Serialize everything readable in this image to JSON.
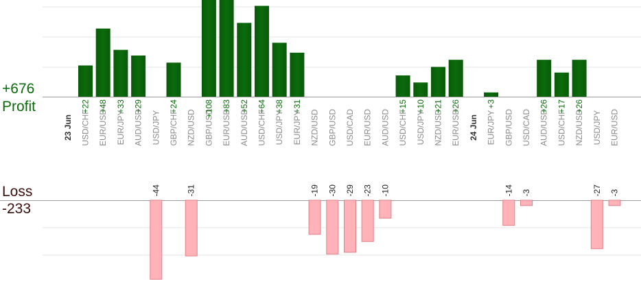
{
  "chart_data": {
    "type": "bar",
    "profit_total": "+676",
    "profit_label": "Profit",
    "loss_label": "Loss",
    "loss_total": "-233",
    "colors": {
      "profit": "#0b6b0b",
      "profit_text": "#0a6a0a",
      "loss_fill": "#ffb3b8",
      "loss_stroke": "#e08088",
      "date_label": "#333333",
      "pair_label": "#8a8a8a",
      "grid": "#e6e6e6",
      "axis": "#999999"
    },
    "days": [
      {
        "date": "23 Jun",
        "trades": [
          {
            "pair": "USD/CHF",
            "value": 22
          },
          {
            "pair": "EUR/USD",
            "value": 48
          },
          {
            "pair": "EUR/JPY",
            "value": 33
          },
          {
            "pair": "AUD/USD",
            "value": 29
          },
          {
            "pair": "USD/JPY",
            "value": -44
          },
          {
            "pair": "GBP/CHF",
            "value": 24
          },
          {
            "pair": "NZD/USD",
            "value": -31
          },
          {
            "pair": "GBP/USD",
            "value": 108
          },
          {
            "pair": "EUR/USD",
            "value": 83
          },
          {
            "pair": "AUD/USD",
            "value": 52
          },
          {
            "pair": "USD/CHF",
            "value": 64
          },
          {
            "pair": "USD/JPY",
            "value": 38
          },
          {
            "pair": "EUR/JPY",
            "value": 31
          },
          {
            "pair": "NZD/USD",
            "value": -19
          },
          {
            "pair": "GBP/USD",
            "value": -30
          },
          {
            "pair": "USD/CAD",
            "value": -29
          },
          {
            "pair": "EUR/USD",
            "value": -23
          },
          {
            "pair": "AUD/USD",
            "value": -10
          },
          {
            "pair": "USD/CHF",
            "value": 15
          },
          {
            "pair": "USD/JPY",
            "value": 10
          },
          {
            "pair": "NZD/USD",
            "value": 21
          },
          {
            "pair": "EUR/USD",
            "value": 26
          }
        ]
      },
      {
        "date": "24 Jun",
        "trades": [
          {
            "pair": "EUR/JPY",
            "value": 3
          },
          {
            "pair": "GBP/USD",
            "value": -14
          },
          {
            "pair": "USD/CAD",
            "value": -3
          },
          {
            "pair": "AUD/USD",
            "value": 26
          },
          {
            "pair": "USD/CHF",
            "value": 17
          },
          {
            "pair": "NZD/USD",
            "value": 26
          },
          {
            "pair": "USD/JPY",
            "value": -27
          },
          {
            "pair": "EUR/USD",
            "value": -3
          }
        ]
      }
    ]
  }
}
